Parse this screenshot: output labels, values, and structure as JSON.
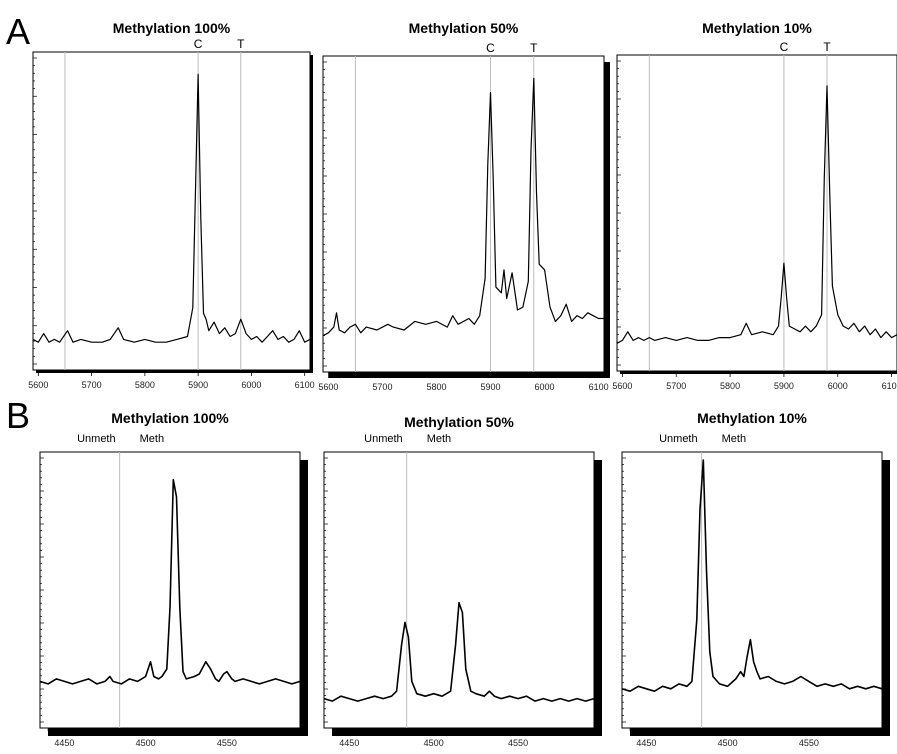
{
  "panels": [
    {
      "letter": "A"
    },
    {
      "letter": "B"
    }
  ],
  "chart_data": [
    {
      "type": "line",
      "panel": "A",
      "title": "Methylation 100%",
      "xlim": [
        5590,
        6110
      ],
      "ylim": [
        0,
        100
      ],
      "xticks": [
        5600,
        5700,
        5800,
        5900,
        6000,
        6100
      ],
      "ref_lines": [
        5650,
        5900,
        5980
      ],
      "marker_labels": [
        {
          "x": 5900,
          "text": "C"
        },
        {
          "x": 5980,
          "text": "T"
        }
      ],
      "points": [
        [
          5590,
          3
        ],
        [
          5600,
          2
        ],
        [
          5610,
          5
        ],
        [
          5620,
          2
        ],
        [
          5630,
          3
        ],
        [
          5640,
          2
        ],
        [
          5655,
          6
        ],
        [
          5665,
          2
        ],
        [
          5680,
          3
        ],
        [
          5700,
          2
        ],
        [
          5720,
          2
        ],
        [
          5735,
          3
        ],
        [
          5750,
          7
        ],
        [
          5760,
          3
        ],
        [
          5780,
          2
        ],
        [
          5800,
          3
        ],
        [
          5820,
          2
        ],
        [
          5840,
          2
        ],
        [
          5860,
          3
        ],
        [
          5880,
          4
        ],
        [
          5890,
          14
        ],
        [
          5895,
          55
        ],
        [
          5900,
          95
        ],
        [
          5905,
          45
        ],
        [
          5910,
          12
        ],
        [
          5915,
          10
        ],
        [
          5920,
          6
        ],
        [
          5930,
          9
        ],
        [
          5940,
          5
        ],
        [
          5950,
          7
        ],
        [
          5960,
          4
        ],
        [
          5970,
          5
        ],
        [
          5980,
          10
        ],
        [
          5990,
          5
        ],
        [
          6000,
          3
        ],
        [
          6010,
          4
        ],
        [
          6020,
          2
        ],
        [
          6030,
          4
        ],
        [
          6040,
          6
        ],
        [
          6050,
          3
        ],
        [
          6060,
          4
        ],
        [
          6070,
          2
        ],
        [
          6080,
          3
        ],
        [
          6090,
          6
        ],
        [
          6100,
          2
        ],
        [
          6110,
          3
        ]
      ]
    },
    {
      "type": "line",
      "panel": "A",
      "title": "Methylation 50%",
      "xlim": [
        5590,
        6110
      ],
      "ylim": [
        0,
        100
      ],
      "xticks": [
        5600,
        5700,
        5800,
        5900,
        6000,
        6100
      ],
      "ref_lines": [
        5650,
        5900,
        5980
      ],
      "marker_labels": [
        {
          "x": 5900,
          "text": "C"
        },
        {
          "x": 5980,
          "text": "T"
        }
      ],
      "points": [
        [
          5590,
          5
        ],
        [
          5600,
          6
        ],
        [
          5610,
          8
        ],
        [
          5615,
          13
        ],
        [
          5620,
          7
        ],
        [
          5630,
          6
        ],
        [
          5640,
          8
        ],
        [
          5650,
          9
        ],
        [
          5660,
          6
        ],
        [
          5670,
          8
        ],
        [
          5690,
          7
        ],
        [
          5710,
          9
        ],
        [
          5720,
          8
        ],
        [
          5740,
          7
        ],
        [
          5760,
          10
        ],
        [
          5780,
          9
        ],
        [
          5800,
          10
        ],
        [
          5820,
          8
        ],
        [
          5830,
          12
        ],
        [
          5840,
          9
        ],
        [
          5860,
          11
        ],
        [
          5870,
          9
        ],
        [
          5880,
          12
        ],
        [
          5890,
          25
        ],
        [
          5895,
          65
        ],
        [
          5900,
          90
        ],
        [
          5905,
          60
        ],
        [
          5910,
          22
        ],
        [
          5920,
          20
        ],
        [
          5925,
          28
        ],
        [
          5930,
          18
        ],
        [
          5940,
          27
        ],
        [
          5950,
          14
        ],
        [
          5960,
          15
        ],
        [
          5970,
          24
        ],
        [
          5975,
          70
        ],
        [
          5980,
          95
        ],
        [
          5985,
          55
        ],
        [
          5990,
          30
        ],
        [
          6000,
          28
        ],
        [
          6010,
          15
        ],
        [
          6020,
          10
        ],
        [
          6030,
          12
        ],
        [
          6040,
          16
        ],
        [
          6050,
          10
        ],
        [
          6060,
          12
        ],
        [
          6070,
          11
        ],
        [
          6080,
          13
        ],
        [
          6090,
          12
        ],
        [
          6100,
          11
        ],
        [
          6110,
          11
        ]
      ]
    },
    {
      "type": "line",
      "panel": "A",
      "title": "Methylation 10%",
      "xlim": [
        5590,
        6110
      ],
      "ylim": [
        0,
        100
      ],
      "xticks": [
        5600,
        5700,
        5800,
        5900,
        6000,
        6100
      ],
      "ref_lines": [
        5650,
        5900,
        5980
      ],
      "marker_labels": [
        {
          "x": 5900,
          "text": "C"
        },
        {
          "x": 5980,
          "text": "T"
        }
      ],
      "points": [
        [
          5590,
          2
        ],
        [
          5600,
          3
        ],
        [
          5610,
          6
        ],
        [
          5620,
          3
        ],
        [
          5630,
          4
        ],
        [
          5640,
          3
        ],
        [
          5650,
          4
        ],
        [
          5660,
          3
        ],
        [
          5680,
          4
        ],
        [
          5700,
          3
        ],
        [
          5720,
          4
        ],
        [
          5740,
          3
        ],
        [
          5760,
          3
        ],
        [
          5780,
          4
        ],
        [
          5800,
          4
        ],
        [
          5820,
          5
        ],
        [
          5830,
          9
        ],
        [
          5840,
          5
        ],
        [
          5860,
          6
        ],
        [
          5880,
          5
        ],
        [
          5890,
          8
        ],
        [
          5895,
          18
        ],
        [
          5900,
          30
        ],
        [
          5905,
          18
        ],
        [
          5910,
          8
        ],
        [
          5920,
          7
        ],
        [
          5930,
          6
        ],
        [
          5940,
          8
        ],
        [
          5950,
          6
        ],
        [
          5960,
          8
        ],
        [
          5970,
          12
        ],
        [
          5975,
          60
        ],
        [
          5980,
          92
        ],
        [
          5985,
          55
        ],
        [
          5990,
          22
        ],
        [
          6000,
          12
        ],
        [
          6010,
          8
        ],
        [
          6020,
          7
        ],
        [
          6030,
          9
        ],
        [
          6040,
          6
        ],
        [
          6050,
          8
        ],
        [
          6060,
          5
        ],
        [
          6070,
          7
        ],
        [
          6080,
          4
        ],
        [
          6090,
          6
        ],
        [
          6100,
          4
        ],
        [
          6110,
          5
        ]
      ]
    },
    {
      "type": "line",
      "panel": "B",
      "title": "Methylation 100%",
      "xlim": [
        4435,
        4595
      ],
      "ylim": [
        0,
        100
      ],
      "xticks": [
        4450,
        4500,
        4550
      ],
      "ref_lines": [
        4484
      ],
      "header_labels": [
        "Unmeth",
        "Meth"
      ],
      "points": [
        [
          4435,
          10
        ],
        [
          4440,
          9
        ],
        [
          4445,
          11
        ],
        [
          4450,
          10
        ],
        [
          4455,
          9
        ],
        [
          4460,
          10
        ],
        [
          4465,
          11
        ],
        [
          4470,
          9
        ],
        [
          4475,
          10
        ],
        [
          4478,
          12
        ],
        [
          4480,
          10
        ],
        [
          4485,
          9
        ],
        [
          4490,
          11
        ],
        [
          4495,
          10
        ],
        [
          4500,
          12
        ],
        [
          4503,
          18
        ],
        [
          4505,
          12
        ],
        [
          4508,
          11
        ],
        [
          4510,
          12
        ],
        [
          4513,
          15
        ],
        [
          4515,
          40
        ],
        [
          4517,
          92
        ],
        [
          4519,
          85
        ],
        [
          4521,
          40
        ],
        [
          4523,
          14
        ],
        [
          4525,
          11
        ],
        [
          4530,
          12
        ],
        [
          4533,
          13
        ],
        [
          4537,
          18
        ],
        [
          4540,
          15
        ],
        [
          4543,
          11
        ],
        [
          4545,
          10
        ],
        [
          4548,
          13
        ],
        [
          4550,
          14
        ],
        [
          4553,
          11
        ],
        [
          4555,
          10
        ],
        [
          4560,
          11
        ],
        [
          4565,
          10
        ],
        [
          4570,
          9
        ],
        [
          4575,
          10
        ],
        [
          4580,
          11
        ],
        [
          4585,
          10
        ],
        [
          4590,
          9
        ],
        [
          4595,
          10
        ]
      ]
    },
    {
      "type": "line",
      "panel": "B",
      "title": "Methylation 50%",
      "xlim": [
        4435,
        4595
      ],
      "ylim": [
        0,
        100
      ],
      "xticks": [
        4450,
        4500,
        4550
      ],
      "ref_lines": [
        4484
      ],
      "header_labels": [
        "Unmeth",
        "Meth"
      ],
      "points": [
        [
          4435,
          3
        ],
        [
          4440,
          2
        ],
        [
          4445,
          4
        ],
        [
          4450,
          3
        ],
        [
          4455,
          2
        ],
        [
          4460,
          3
        ],
        [
          4465,
          4
        ],
        [
          4470,
          3
        ],
        [
          4475,
          4
        ],
        [
          4478,
          6
        ],
        [
          4481,
          25
        ],
        [
          4483,
          34
        ],
        [
          4485,
          28
        ],
        [
          4487,
          10
        ],
        [
          4490,
          5
        ],
        [
          4495,
          4
        ],
        [
          4500,
          5
        ],
        [
          4505,
          4
        ],
        [
          4510,
          6
        ],
        [
          4513,
          25
        ],
        [
          4515,
          42
        ],
        [
          4517,
          38
        ],
        [
          4519,
          15
        ],
        [
          4522,
          6
        ],
        [
          4525,
          5
        ],
        [
          4530,
          4
        ],
        [
          4533,
          6
        ],
        [
          4536,
          4
        ],
        [
          4540,
          3
        ],
        [
          4545,
          4
        ],
        [
          4550,
          3
        ],
        [
          4555,
          4
        ],
        [
          4560,
          2
        ],
        [
          4565,
          3
        ],
        [
          4570,
          2
        ],
        [
          4575,
          3
        ],
        [
          4580,
          2
        ],
        [
          4585,
          3
        ],
        [
          4590,
          2
        ],
        [
          4595,
          3
        ]
      ]
    },
    {
      "type": "line",
      "panel": "B",
      "title": "Methylation 10%",
      "xlim": [
        4435,
        4595
      ],
      "ylim": [
        0,
        100
      ],
      "xticks": [
        4450,
        4500,
        4550
      ],
      "ref_lines": [
        4484
      ],
      "header_labels": [
        "Unmeth",
        "Meth"
      ],
      "points": [
        [
          4435,
          7
        ],
        [
          4440,
          6
        ],
        [
          4445,
          8
        ],
        [
          4450,
          7
        ],
        [
          4455,
          6
        ],
        [
          4460,
          8
        ],
        [
          4465,
          7
        ],
        [
          4470,
          9
        ],
        [
          4475,
          8
        ],
        [
          4478,
          10
        ],
        [
          4481,
          35
        ],
        [
          4483,
          80
        ],
        [
          4485,
          100
        ],
        [
          4487,
          55
        ],
        [
          4489,
          22
        ],
        [
          4491,
          12
        ],
        [
          4495,
          9
        ],
        [
          4500,
          8
        ],
        [
          4505,
          11
        ],
        [
          4508,
          14
        ],
        [
          4510,
          12
        ],
        [
          4512,
          20
        ],
        [
          4514,
          27
        ],
        [
          4516,
          18
        ],
        [
          4518,
          14
        ],
        [
          4520,
          11
        ],
        [
          4525,
          12
        ],
        [
          4530,
          10
        ],
        [
          4535,
          9
        ],
        [
          4540,
          10
        ],
        [
          4545,
          12
        ],
        [
          4550,
          10
        ],
        [
          4555,
          8
        ],
        [
          4560,
          9
        ],
        [
          4565,
          8
        ],
        [
          4570,
          9
        ],
        [
          4575,
          7
        ],
        [
          4580,
          8
        ],
        [
          4585,
          7
        ],
        [
          4590,
          8
        ],
        [
          4595,
          7
        ]
      ]
    }
  ]
}
